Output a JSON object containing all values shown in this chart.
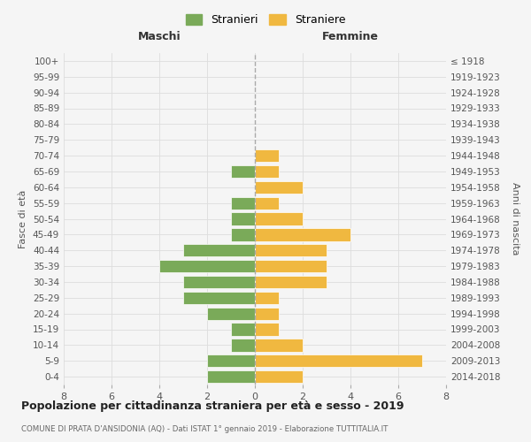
{
  "age_groups": [
    "100+",
    "95-99",
    "90-94",
    "85-89",
    "80-84",
    "75-79",
    "70-74",
    "65-69",
    "60-64",
    "55-59",
    "50-54",
    "45-49",
    "40-44",
    "35-39",
    "30-34",
    "25-29",
    "20-24",
    "15-19",
    "10-14",
    "5-9",
    "0-4"
  ],
  "birth_years": [
    "≤ 1918",
    "1919-1923",
    "1924-1928",
    "1929-1933",
    "1934-1938",
    "1939-1943",
    "1944-1948",
    "1949-1953",
    "1954-1958",
    "1959-1963",
    "1964-1968",
    "1969-1973",
    "1974-1978",
    "1979-1983",
    "1984-1988",
    "1989-1993",
    "1994-1998",
    "1999-2003",
    "2004-2008",
    "2009-2013",
    "2014-2018"
  ],
  "maschi": [
    0,
    0,
    0,
    0,
    0,
    0,
    0,
    1,
    0,
    1,
    1,
    1,
    3,
    4,
    3,
    3,
    2,
    1,
    1,
    2,
    2
  ],
  "femmine": [
    0,
    0,
    0,
    0,
    0,
    0,
    1,
    1,
    2,
    1,
    2,
    4,
    3,
    3,
    3,
    1,
    1,
    1,
    2,
    7,
    2
  ],
  "male_color": "#7aaa59",
  "female_color": "#f0b840",
  "title": "Popolazione per cittadinanza straniera per età e sesso - 2019",
  "subtitle": "COMUNE DI PRATA D'ANSIDONIA (AQ) - Dati ISTAT 1° gennaio 2019 - Elaborazione TUTTITALIA.IT",
  "xlabel_left": "Maschi",
  "xlabel_right": "Femmine",
  "ylabel_left": "Fasce di età",
  "ylabel_right": "Anni di nascita",
  "legend_male": "Stranieri",
  "legend_female": "Straniere",
  "xlim": 8,
  "background_color": "#f5f5f5",
  "grid_color": "#dddddd"
}
